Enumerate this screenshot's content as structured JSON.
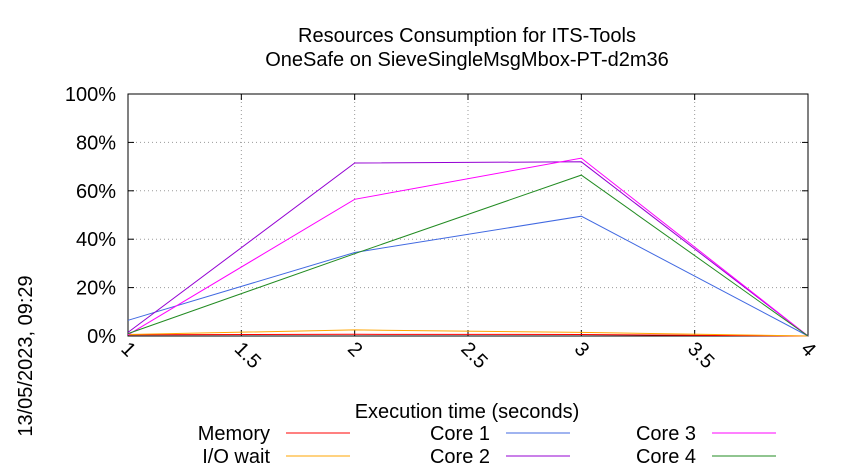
{
  "chart_data": {
    "type": "line",
    "title": "Resources Consumption for ITS-Tools",
    "subtitle": "OneSafe on SieveSingleMsgMbox-PT-d2m36",
    "xlabel": "Execution time (seconds)",
    "ylabel": "",
    "side_label": "13/05/2023, 09:29",
    "xlim": [
      1,
      4
    ],
    "ylim": [
      0,
      100
    ],
    "x_ticks": [
      1,
      1.5,
      2,
      2.5,
      3,
      3.5,
      4
    ],
    "x_tick_labels": [
      "1",
      "1.5",
      "2",
      "2.5",
      "3",
      "3.5",
      "4"
    ],
    "y_ticks": [
      0,
      20,
      40,
      60,
      80,
      100
    ],
    "y_tick_labels": [
      "0%",
      "20%",
      "40%",
      "60%",
      "80%",
      "100%"
    ],
    "grid": true,
    "legend_position": "bottom",
    "series": [
      {
        "name": "Memory",
        "color": "#ff0000",
        "x": [
          1,
          2,
          3,
          4
        ],
        "y": [
          0.5,
          0.7,
          0.6,
          0
        ]
      },
      {
        "name": "I/O wait",
        "color": "#ffa500",
        "x": [
          1,
          2,
          3,
          4
        ],
        "y": [
          0.6,
          2.5,
          1.5,
          0
        ]
      },
      {
        "name": "Core 1",
        "color": "#4169e1",
        "x": [
          1,
          2,
          3,
          4
        ],
        "y": [
          6.5,
          34.5,
          49.5,
          0
        ]
      },
      {
        "name": "Core 2",
        "color": "#9400d3",
        "x": [
          1,
          2,
          3,
          4
        ],
        "y": [
          1.5,
          71.5,
          72,
          0
        ]
      },
      {
        "name": "Core 3",
        "color": "#ff00ff",
        "x": [
          1,
          2,
          3,
          4
        ],
        "y": [
          0.5,
          56.5,
          73.5,
          0
        ]
      },
      {
        "name": "Core 4",
        "color": "#228b22",
        "x": [
          1,
          2,
          3,
          4
        ],
        "y": [
          1,
          34,
          66.5,
          0
        ]
      }
    ]
  }
}
